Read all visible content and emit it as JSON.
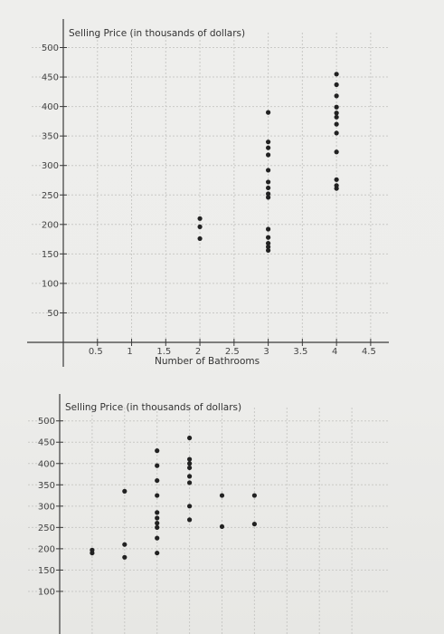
{
  "chart_data": [
    {
      "type": "scatter",
      "ylabel": "Selling Price (in thousands of dollars)",
      "xlabel": "Number of Bathrooms",
      "x_ticks": [
        0.5,
        1,
        1.5,
        2,
        2.5,
        3,
        3.5,
        4,
        4.5
      ],
      "y_ticks": [
        50,
        100,
        150,
        200,
        250,
        300,
        350,
        400,
        450,
        500
      ],
      "xlim": [
        0,
        4.7
      ],
      "ylim": [
        0,
        510
      ],
      "grid": true,
      "points": [
        {
          "x": 2,
          "y": 210
        },
        {
          "x": 2,
          "y": 196
        },
        {
          "x": 2,
          "y": 176
        },
        {
          "x": 3,
          "y": 390
        },
        {
          "x": 3,
          "y": 340
        },
        {
          "x": 3,
          "y": 330
        },
        {
          "x": 3,
          "y": 318
        },
        {
          "x": 3,
          "y": 292
        },
        {
          "x": 3,
          "y": 272
        },
        {
          "x": 3,
          "y": 262
        },
        {
          "x": 3,
          "y": 252
        },
        {
          "x": 3,
          "y": 246
        },
        {
          "x": 3,
          "y": 192
        },
        {
          "x": 3,
          "y": 178
        },
        {
          "x": 3,
          "y": 168
        },
        {
          "x": 3,
          "y": 162
        },
        {
          "x": 3,
          "y": 156
        },
        {
          "x": 4,
          "y": 455
        },
        {
          "x": 4,
          "y": 437
        },
        {
          "x": 4,
          "y": 418
        },
        {
          "x": 4,
          "y": 399
        },
        {
          "x": 4,
          "y": 389
        },
        {
          "x": 4,
          "y": 382
        },
        {
          "x": 4,
          "y": 370
        },
        {
          "x": 4,
          "y": 355
        },
        {
          "x": 4,
          "y": 323
        },
        {
          "x": 4,
          "y": 276
        },
        {
          "x": 4,
          "y": 266
        },
        {
          "x": 4,
          "y": 261
        }
      ]
    },
    {
      "type": "scatter",
      "ylabel": "Selling Price (in thousands of dollars)",
      "xlabel": "",
      "x_ticks": [],
      "y_ticks": [
        100,
        150,
        200,
        250,
        300,
        350,
        400,
        450,
        500
      ],
      "xlim": [
        0,
        5
      ],
      "ylim": [
        0,
        510
      ],
      "grid": true,
      "points": [
        {
          "x": 2,
          "y": 460
        },
        {
          "x": 1.5,
          "y": 430
        },
        {
          "x": 1.5,
          "y": 395
        },
        {
          "x": 1.5,
          "y": 360
        },
        {
          "x": 1.5,
          "y": 325
        },
        {
          "x": 1.5,
          "y": 285
        },
        {
          "x": 1.5,
          "y": 272
        },
        {
          "x": 1.5,
          "y": 260
        },
        {
          "x": 1.5,
          "y": 250
        },
        {
          "x": 1.5,
          "y": 225
        },
        {
          "x": 1.5,
          "y": 190
        },
        {
          "x": 2,
          "y": 410
        },
        {
          "x": 2,
          "y": 400
        },
        {
          "x": 2,
          "y": 390
        },
        {
          "x": 2,
          "y": 370
        },
        {
          "x": 2,
          "y": 355
        },
        {
          "x": 2,
          "y": 300
        },
        {
          "x": 2,
          "y": 268
        },
        {
          "x": 1,
          "y": 335
        },
        {
          "x": 1,
          "y": 210
        },
        {
          "x": 1,
          "y": 180
        },
        {
          "x": 0.5,
          "y": 197
        },
        {
          "x": 0.5,
          "y": 190
        },
        {
          "x": 2.5,
          "y": 325
        },
        {
          "x": 2.5,
          "y": 252
        },
        {
          "x": 3,
          "y": 325
        },
        {
          "x": 3,
          "y": 258
        }
      ]
    }
  ]
}
